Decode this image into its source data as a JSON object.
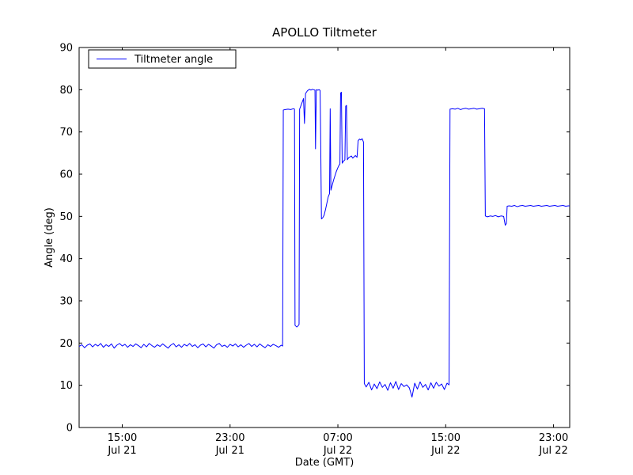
{
  "chart_data": {
    "type": "line",
    "title": "APOLLO Tiltmeter",
    "xlabel": "Date (GMT)",
    "ylabel": "Angle (deg)",
    "x_unit": "hours since Jul 21 00:00 GMT",
    "xlim": [
      11.8,
      48.2
    ],
    "ylim": [
      0,
      90
    ],
    "grid": false,
    "yticks": [
      0,
      10,
      20,
      30,
      40,
      50,
      60,
      70,
      80,
      90
    ],
    "xticks": [
      {
        "x": 15,
        "time": "15:00",
        "date": "Jul 21"
      },
      {
        "x": 23,
        "time": "23:00",
        "date": "Jul 21"
      },
      {
        "x": 31,
        "time": "07:00",
        "date": "Jul 22"
      },
      {
        "x": 39,
        "time": "15:00",
        "date": "Jul 22"
      },
      {
        "x": 47,
        "time": "23:00",
        "date": "Jul 22"
      }
    ],
    "legend": {
      "position": "upper left",
      "entries": [
        {
          "label": "Tiltmeter angle",
          "color": "#0000ff"
        }
      ]
    },
    "series": [
      {
        "name": "Tiltmeter angle",
        "color": "#0000ff",
        "points": [
          [
            11.8,
            19.2
          ],
          [
            12.0,
            19.6
          ],
          [
            12.2,
            18.9
          ],
          [
            12.4,
            19.5
          ],
          [
            12.6,
            19.8
          ],
          [
            12.8,
            19.1
          ],
          [
            13.0,
            19.7
          ],
          [
            13.2,
            19.3
          ],
          [
            13.4,
            19.9
          ],
          [
            13.6,
            19.0
          ],
          [
            13.8,
            19.6
          ],
          [
            14.0,
            19.2
          ],
          [
            14.2,
            19.8
          ],
          [
            14.4,
            18.8
          ],
          [
            14.6,
            19.5
          ],
          [
            14.8,
            19.9
          ],
          [
            15.0,
            19.3
          ],
          [
            15.2,
            19.7
          ],
          [
            15.4,
            19.0
          ],
          [
            15.6,
            19.6
          ],
          [
            15.8,
            19.2
          ],
          [
            16.0,
            19.8
          ],
          [
            16.2,
            19.4
          ],
          [
            16.4,
            18.9
          ],
          [
            16.6,
            19.7
          ],
          [
            16.8,
            19.1
          ],
          [
            17.0,
            19.9
          ],
          [
            17.2,
            19.4
          ],
          [
            17.4,
            19.0
          ],
          [
            17.6,
            19.6
          ],
          [
            17.8,
            19.2
          ],
          [
            18.0,
            19.8
          ],
          [
            18.2,
            19.3
          ],
          [
            18.4,
            18.8
          ],
          [
            18.6,
            19.5
          ],
          [
            18.8,
            19.9
          ],
          [
            19.0,
            19.1
          ],
          [
            19.2,
            19.6
          ],
          [
            19.4,
            19.0
          ],
          [
            19.6,
            19.7
          ],
          [
            19.8,
            19.3
          ],
          [
            20.0,
            19.9
          ],
          [
            20.2,
            19.2
          ],
          [
            20.4,
            19.6
          ],
          [
            20.6,
            18.9
          ],
          [
            20.8,
            19.5
          ],
          [
            21.0,
            19.8
          ],
          [
            21.2,
            19.1
          ],
          [
            21.4,
            19.7
          ],
          [
            21.6,
            19.3
          ],
          [
            21.8,
            18.8
          ],
          [
            22.0,
            19.6
          ],
          [
            22.2,
            19.9
          ],
          [
            22.4,
            19.2
          ],
          [
            22.6,
            19.5
          ],
          [
            22.8,
            19.0
          ],
          [
            23.0,
            19.7
          ],
          [
            23.2,
            19.3
          ],
          [
            23.4,
            19.8
          ],
          [
            23.6,
            19.1
          ],
          [
            23.8,
            19.6
          ],
          [
            24.0,
            19.0
          ],
          [
            24.2,
            19.5
          ],
          [
            24.4,
            19.9
          ],
          [
            24.6,
            19.2
          ],
          [
            24.8,
            19.7
          ],
          [
            25.0,
            19.1
          ],
          [
            25.2,
            19.8
          ],
          [
            25.4,
            19.3
          ],
          [
            25.6,
            18.9
          ],
          [
            25.8,
            19.6
          ],
          [
            26.0,
            19.2
          ],
          [
            26.2,
            19.7
          ],
          [
            26.4,
            19.4
          ],
          [
            26.6,
            19.0
          ],
          [
            26.8,
            19.5
          ],
          [
            26.9,
            19.3
          ],
          [
            26.95,
            75.2
          ],
          [
            27.1,
            75.3
          ],
          [
            27.3,
            75.4
          ],
          [
            27.5,
            75.3
          ],
          [
            27.7,
            75.5
          ],
          [
            27.78,
            75.4
          ],
          [
            27.82,
            24.2
          ],
          [
            27.95,
            23.8
          ],
          [
            28.05,
            24.1
          ],
          [
            28.12,
            24.4
          ],
          [
            28.16,
            75.4
          ],
          [
            28.3,
            76.6
          ],
          [
            28.45,
            77.9
          ],
          [
            28.52,
            72.0
          ],
          [
            28.6,
            79.1
          ],
          [
            28.75,
            79.8
          ],
          [
            28.9,
            80.1
          ],
          [
            29.0,
            79.9
          ],
          [
            29.1,
            80.1
          ],
          [
            29.2,
            80.0
          ],
          [
            29.3,
            79.9
          ],
          [
            29.34,
            66.0
          ],
          [
            29.4,
            80.0
          ],
          [
            29.5,
            79.9
          ],
          [
            29.62,
            80.0
          ],
          [
            29.68,
            79.8
          ],
          [
            29.72,
            69.5
          ],
          [
            29.78,
            49.4
          ],
          [
            29.88,
            49.7
          ],
          [
            29.98,
            50.3
          ],
          [
            30.08,
            51.6
          ],
          [
            30.18,
            53.1
          ],
          [
            30.28,
            54.6
          ],
          [
            30.38,
            55.4
          ],
          [
            30.43,
            75.5
          ],
          [
            30.48,
            56.2
          ],
          [
            30.58,
            57.4
          ],
          [
            30.68,
            58.6
          ],
          [
            30.78,
            59.6
          ],
          [
            30.88,
            60.6
          ],
          [
            30.98,
            61.4
          ],
          [
            31.08,
            62.1
          ],
          [
            31.15,
            62.4
          ],
          [
            31.2,
            79.2
          ],
          [
            31.26,
            79.4
          ],
          [
            31.32,
            62.6
          ],
          [
            31.42,
            63.1
          ],
          [
            31.52,
            63.4
          ],
          [
            31.58,
            76.1
          ],
          [
            31.64,
            76.3
          ],
          [
            31.7,
            63.4
          ],
          [
            31.8,
            63.9
          ],
          [
            31.9,
            64.1
          ],
          [
            32.0,
            64.3
          ],
          [
            32.1,
            63.8
          ],
          [
            32.2,
            64.1
          ],
          [
            32.3,
            64.4
          ],
          [
            32.42,
            64.0
          ],
          [
            32.5,
            67.9
          ],
          [
            32.6,
            68.3
          ],
          [
            32.7,
            68.1
          ],
          [
            32.8,
            68.4
          ],
          [
            32.9,
            67.6
          ],
          [
            32.96,
            10.4
          ],
          [
            33.1,
            9.6
          ],
          [
            33.3,
            10.7
          ],
          [
            33.5,
            8.9
          ],
          [
            33.7,
            10.3
          ],
          [
            33.9,
            9.2
          ],
          [
            34.1,
            10.8
          ],
          [
            34.3,
            9.5
          ],
          [
            34.5,
            10.2
          ],
          [
            34.7,
            8.8
          ],
          [
            34.9,
            10.6
          ],
          [
            35.1,
            9.3
          ],
          [
            35.3,
            10.9
          ],
          [
            35.5,
            9.0
          ],
          [
            35.7,
            10.4
          ],
          [
            35.9,
            9.7
          ],
          [
            36.1,
            10.1
          ],
          [
            36.3,
            9.4
          ],
          [
            36.5,
            7.2
          ],
          [
            36.7,
            10.5
          ],
          [
            36.9,
            9.1
          ],
          [
            37.1,
            10.8
          ],
          [
            37.3,
            9.5
          ],
          [
            37.5,
            10.2
          ],
          [
            37.7,
            8.9
          ],
          [
            37.9,
            10.6
          ],
          [
            38.1,
            9.3
          ],
          [
            38.3,
            10.7
          ],
          [
            38.5,
            9.8
          ],
          [
            38.7,
            10.3
          ],
          [
            38.9,
            9.0
          ],
          [
            39.1,
            10.5
          ],
          [
            39.25,
            10.1
          ],
          [
            39.32,
            75.4
          ],
          [
            39.5,
            75.5
          ],
          [
            39.7,
            75.4
          ],
          [
            39.9,
            75.6
          ],
          [
            40.1,
            75.3
          ],
          [
            40.3,
            75.5
          ],
          [
            40.5,
            75.6
          ],
          [
            40.7,
            75.4
          ],
          [
            40.9,
            75.5
          ],
          [
            41.1,
            75.6
          ],
          [
            41.3,
            75.4
          ],
          [
            41.5,
            75.5
          ],
          [
            41.7,
            75.6
          ],
          [
            41.88,
            75.5
          ],
          [
            41.94,
            50.1
          ],
          [
            42.1,
            49.9
          ],
          [
            42.3,
            50.1
          ],
          [
            42.5,
            50.0
          ],
          [
            42.7,
            50.2
          ],
          [
            42.9,
            49.9
          ],
          [
            43.1,
            50.1
          ],
          [
            43.3,
            50.0
          ],
          [
            43.42,
            47.9
          ],
          [
            43.5,
            48.3
          ],
          [
            43.56,
            52.4
          ],
          [
            43.7,
            52.5
          ],
          [
            43.9,
            52.4
          ],
          [
            44.1,
            52.6
          ],
          [
            44.3,
            52.3
          ],
          [
            44.5,
            52.5
          ],
          [
            44.7,
            52.6
          ],
          [
            44.9,
            52.4
          ],
          [
            45.1,
            52.5
          ],
          [
            45.3,
            52.6
          ],
          [
            45.5,
            52.4
          ],
          [
            45.7,
            52.5
          ],
          [
            45.9,
            52.6
          ],
          [
            46.1,
            52.4
          ],
          [
            46.3,
            52.5
          ],
          [
            46.5,
            52.6
          ],
          [
            46.7,
            52.4
          ],
          [
            46.9,
            52.5
          ],
          [
            47.1,
            52.6
          ],
          [
            47.3,
            52.4
          ],
          [
            47.5,
            52.5
          ],
          [
            47.7,
            52.6
          ],
          [
            47.9,
            52.4
          ],
          [
            48.1,
            52.5
          ],
          [
            48.2,
            52.5
          ]
        ]
      }
    ]
  }
}
